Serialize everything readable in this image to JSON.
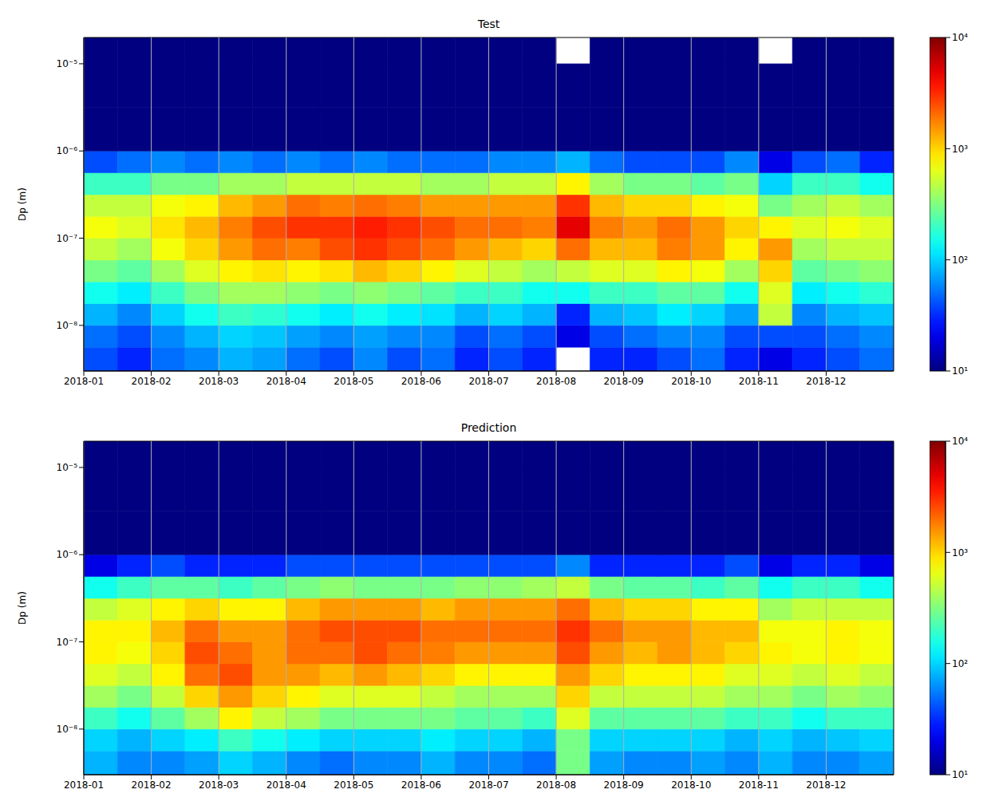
{
  "chart_data": [
    {
      "type": "heatmap",
      "title": "Test",
      "ylabel": "Dp (m)",
      "x_edges": [
        0,
        0.5,
        1,
        1.5,
        2,
        2.5,
        3,
        3.5,
        4,
        4.5,
        5,
        5.5,
        6,
        6.5,
        7,
        7.5,
        8,
        8.5,
        9,
        9.5,
        10,
        10.5,
        11,
        11.5,
        12
      ],
      "y_edges": [
        3e-09,
        5.62e-09,
        1e-08,
        1.78e-08,
        3.16e-08,
        5.62e-08,
        1e-07,
        1.78e-07,
        3.16e-07,
        5.62e-07,
        1e-06,
        3.16e-06,
        1e-05,
        2e-05
      ],
      "values": [
        [
          40,
          30,
          50,
          60,
          80,
          70,
          50,
          40,
          60,
          40,
          50,
          30,
          40,
          30,
          null,
          30,
          30,
          40,
          50,
          30,
          20,
          30,
          40,
          50
        ],
        [
          50,
          40,
          60,
          80,
          100,
          90,
          70,
          60,
          70,
          60,
          60,
          40,
          50,
          40,
          20,
          40,
          50,
          60,
          60,
          40,
          40,
          40,
          50,
          60
        ],
        [
          80,
          60,
          100,
          150,
          200,
          180,
          150,
          120,
          150,
          120,
          110,
          80,
          100,
          80,
          30,
          80,
          90,
          120,
          100,
          70,
          500,
          60,
          80,
          90
        ],
        [
          150,
          120,
          200,
          300,
          400,
          400,
          350,
          300,
          350,
          300,
          250,
          200,
          200,
          150,
          150,
          200,
          200,
          250,
          250,
          150,
          600,
          120,
          150,
          180
        ],
        [
          300,
          250,
          400,
          600,
          800,
          900,
          800,
          900,
          1200,
          1000,
          800,
          600,
          500,
          400,
          500,
          600,
          600,
          800,
          700,
          400,
          1000,
          250,
          300,
          350
        ],
        [
          500,
          400,
          700,
          1000,
          1500,
          2000,
          1800,
          2500,
          3000,
          2500,
          2000,
          1500,
          1200,
          1000,
          2000,
          1200,
          1200,
          1800,
          1500,
          800,
          1500,
          400,
          500,
          500
        ],
        [
          700,
          600,
          900,
          1200,
          1800,
          2500,
          3000,
          3000,
          3500,
          3000,
          2500,
          2000,
          2000,
          1800,
          5000,
          1800,
          1500,
          2000,
          1500,
          1000,
          800,
          600,
          700,
          600
        ],
        [
          500,
          500,
          700,
          800,
          1200,
          1500,
          2000,
          1800,
          2000,
          1800,
          1500,
          1500,
          1500,
          1500,
          3000,
          1200,
          1000,
          1000,
          800,
          700,
          300,
          400,
          500,
          400
        ],
        [
          200,
          200,
          300,
          300,
          400,
          400,
          500,
          500,
          500,
          500,
          400,
          400,
          500,
          500,
          800,
          400,
          300,
          300,
          250,
          300,
          100,
          200,
          200,
          150
        ],
        [
          40,
          50,
          60,
          50,
          60,
          50,
          60,
          50,
          60,
          50,
          50,
          50,
          60,
          60,
          80,
          50,
          40,
          40,
          40,
          60,
          20,
          40,
          50,
          30
        ],
        [
          2,
          2,
          2,
          2,
          2,
          2,
          2,
          2,
          2,
          2,
          2,
          2,
          2,
          2,
          2,
          2,
          2,
          2,
          2,
          2,
          2,
          2,
          2,
          2
        ],
        [
          1,
          1,
          1,
          1,
          1,
          1,
          1,
          1,
          1,
          1,
          1,
          1,
          1,
          1,
          1,
          1,
          1,
          1,
          1,
          1,
          1,
          1,
          1,
          1
        ],
        [
          1,
          1,
          1,
          1,
          1,
          1,
          1,
          1,
          1,
          1,
          1,
          1,
          1,
          1,
          null,
          1,
          1,
          1,
          1,
          1,
          null,
          1,
          1,
          1
        ]
      ],
      "xlim": [
        0,
        12
      ],
      "xticks": [
        {
          "value": 0,
          "label": "2018-01"
        },
        {
          "value": 1,
          "label": "2018-02"
        },
        {
          "value": 2,
          "label": "2018-03"
        },
        {
          "value": 3,
          "label": "2018-04"
        },
        {
          "value": 4,
          "label": "2018-05"
        },
        {
          "value": 5,
          "label": "2018-06"
        },
        {
          "value": 6,
          "label": "2018-07"
        },
        {
          "value": 7,
          "label": "2018-08"
        },
        {
          "value": 8,
          "label": "2018-09"
        },
        {
          "value": 9,
          "label": "2018-10"
        },
        {
          "value": 10,
          "label": "2018-11"
        },
        {
          "value": 11,
          "label": "2018-12"
        }
      ],
      "ylim": [
        3e-09,
        2e-05
      ],
      "yticks": [
        {
          "value": 1e-08,
          "label": "10⁻⁸"
        },
        {
          "value": 1e-07,
          "label": "10⁻⁷"
        },
        {
          "value": 1e-06,
          "label": "10⁻⁶"
        },
        {
          "value": 1e-05,
          "label": "10⁻⁵"
        }
      ],
      "log": "y",
      "grid": "x",
      "colorbar": {
        "range": [
          10,
          10000
        ],
        "ticks": [
          {
            "value": 10,
            "label": "10¹"
          },
          {
            "value": 100,
            "label": "10²"
          },
          {
            "value": 1000,
            "label": "10³"
          },
          {
            "value": 10000,
            "label": "10⁴"
          }
        ]
      }
    },
    {
      "type": "heatmap",
      "title": "Prediction",
      "ylabel": "Dp (m)",
      "x_edges": [
        0,
        0.5,
        1,
        1.5,
        2,
        2.5,
        3,
        3.5,
        4,
        4.5,
        5,
        5.5,
        6,
        6.5,
        7,
        7.5,
        8,
        8.5,
        9,
        9.5,
        10,
        10.5,
        11,
        11.5,
        12
      ],
      "y_edges": [
        3e-09,
        5.62e-09,
        1e-08,
        1.78e-08,
        3.16e-08,
        5.62e-08,
        1e-07,
        1.78e-07,
        3.16e-07,
        5.62e-07,
        1e-06,
        3.16e-06,
        1e-05,
        2e-05
      ],
      "values": [
        [
          80,
          60,
          60,
          70,
          100,
          80,
          60,
          50,
          60,
          60,
          80,
          60,
          60,
          50,
          300,
          70,
          60,
          60,
          70,
          60,
          80,
          60,
          60,
          70
        ],
        [
          100,
          80,
          100,
          120,
          200,
          150,
          120,
          100,
          100,
          100,
          120,
          100,
          100,
          80,
          300,
          100,
          100,
          100,
          100,
          80,
          100,
          80,
          90,
          100
        ],
        [
          200,
          150,
          250,
          400,
          800,
          500,
          400,
          300,
          300,
          300,
          300,
          250,
          250,
          200,
          600,
          250,
          250,
          250,
          250,
          200,
          200,
          150,
          200,
          200
        ],
        [
          400,
          300,
          500,
          1000,
          1500,
          1000,
          800,
          600,
          600,
          600,
          500,
          400,
          400,
          400,
          1000,
          500,
          500,
          500,
          500,
          400,
          400,
          300,
          400,
          350
        ],
        [
          600,
          500,
          800,
          2000,
          2500,
          1500,
          1500,
          1200,
          1500,
          1200,
          1000,
          800,
          800,
          800,
          1500,
          1000,
          800,
          800,
          800,
          600,
          600,
          500,
          600,
          500
        ],
        [
          800,
          700,
          1000,
          2500,
          2000,
          1500,
          2000,
          2000,
          2500,
          2000,
          1800,
          1500,
          1500,
          1500,
          2500,
          1500,
          1200,
          1500,
          1200,
          1000,
          800,
          700,
          800,
          700
        ],
        [
          800,
          800,
          1200,
          2000,
          1500,
          1500,
          2000,
          2500,
          2500,
          2500,
          2000,
          2000,
          2000,
          2000,
          3000,
          2000,
          1500,
          1500,
          1200,
          1200,
          700,
          700,
          800,
          700
        ],
        [
          500,
          600,
          800,
          1000,
          800,
          800,
          1200,
          1500,
          1500,
          1500,
          1200,
          1500,
          1500,
          1500,
          2000,
          1200,
          1000,
          1000,
          800,
          800,
          400,
          500,
          500,
          500
        ],
        [
          150,
          200,
          250,
          250,
          200,
          250,
          300,
          350,
          300,
          300,
          300,
          350,
          350,
          400,
          500,
          300,
          250,
          250,
          200,
          250,
          150,
          200,
          200,
          150
        ],
        [
          20,
          30,
          40,
          30,
          30,
          30,
          40,
          40,
          40,
          40,
          40,
          40,
          40,
          40,
          60,
          30,
          30,
          30,
          30,
          40,
          20,
          30,
          30,
          20
        ],
        [
          2,
          2,
          2,
          2,
          2,
          2,
          2,
          2,
          2,
          2,
          2,
          2,
          2,
          2,
          2,
          2,
          2,
          2,
          2,
          2,
          2,
          2,
          2,
          2
        ],
        [
          1,
          1,
          1,
          1,
          1,
          1,
          1,
          1,
          1,
          1,
          1,
          1,
          1,
          1,
          1,
          1,
          1,
          1,
          1,
          1,
          1,
          1,
          1,
          1
        ],
        [
          1,
          1,
          1,
          1,
          1,
          1,
          1,
          1,
          1,
          1,
          1,
          1,
          1,
          1,
          1,
          1,
          1,
          1,
          1,
          1,
          1,
          1,
          1,
          1
        ]
      ],
      "xlim": [
        0,
        12
      ],
      "xticks": [
        {
          "value": 0,
          "label": "2018-01"
        },
        {
          "value": 1,
          "label": "2018-02"
        },
        {
          "value": 2,
          "label": "2018-03"
        },
        {
          "value": 3,
          "label": "2018-04"
        },
        {
          "value": 4,
          "label": "2018-05"
        },
        {
          "value": 5,
          "label": "2018-06"
        },
        {
          "value": 6,
          "label": "2018-07"
        },
        {
          "value": 7,
          "label": "2018-08"
        },
        {
          "value": 8,
          "label": "2018-09"
        },
        {
          "value": 9,
          "label": "2018-10"
        },
        {
          "value": 10,
          "label": "2018-11"
        },
        {
          "value": 11,
          "label": "2018-12"
        }
      ],
      "ylim": [
        3e-09,
        2e-05
      ],
      "yticks": [
        {
          "value": 1e-08,
          "label": "10⁻⁸"
        },
        {
          "value": 1e-07,
          "label": "10⁻⁷"
        },
        {
          "value": 1e-06,
          "label": "10⁻⁶"
        },
        {
          "value": 1e-05,
          "label": "10⁻⁵"
        }
      ],
      "log": "y",
      "grid": "x",
      "colorbar": {
        "range": [
          10,
          10000
        ],
        "ticks": [
          {
            "value": 10,
            "label": "10¹"
          },
          {
            "value": 100,
            "label": "10²"
          },
          {
            "value": 1000,
            "label": "10³"
          },
          {
            "value": 10000,
            "label": "10⁴"
          }
        ]
      }
    }
  ]
}
